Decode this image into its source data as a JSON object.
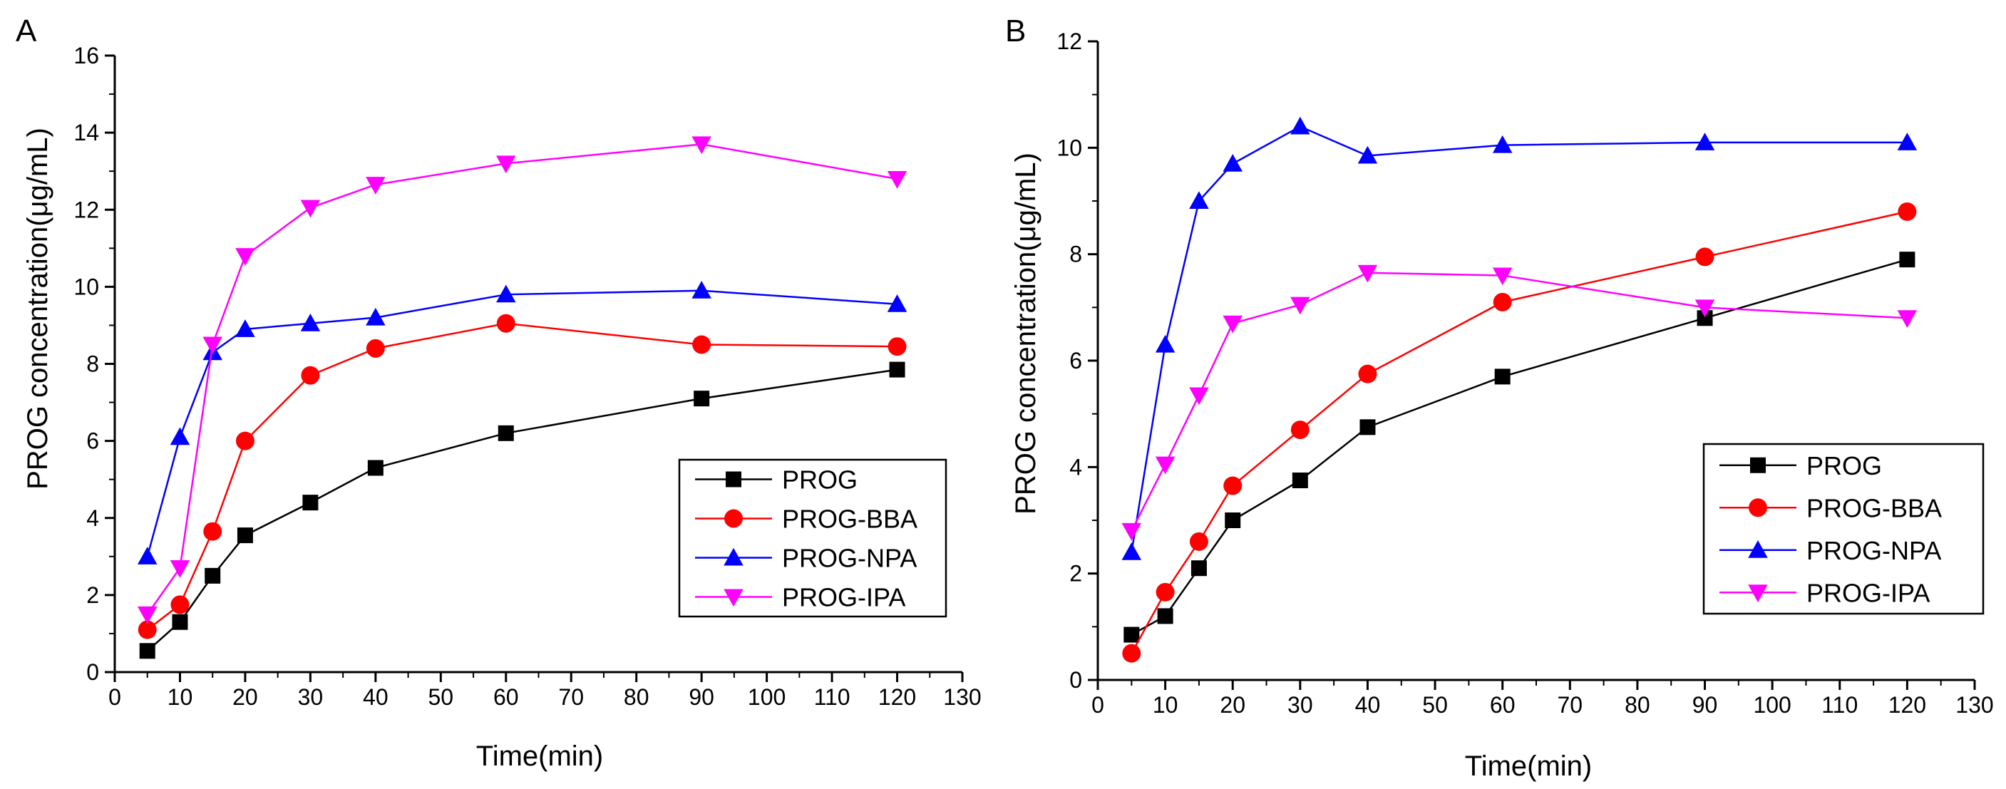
{
  "chart_data": [
    {
      "panel_label": "A",
      "type": "line",
      "title": "",
      "xlabel": "Time(min)",
      "ylabel": "PROG concentration(μg/mL)",
      "xlim": [
        0,
        130
      ],
      "ylim": [
        0,
        16
      ],
      "xticks": [
        0,
        10,
        20,
        30,
        40,
        50,
        60,
        70,
        80,
        90,
        100,
        110,
        120,
        130
      ],
      "yticks": [
        0,
        2,
        4,
        6,
        8,
        10,
        12,
        14,
        16
      ],
      "grid": false,
      "legend_position": "bottom-right",
      "x": [
        5,
        10,
        15,
        20,
        30,
        40,
        60,
        90,
        120
      ],
      "series": [
        {
          "name": "PROG",
          "color": "#000000",
          "marker": "square",
          "values": [
            0.55,
            1.3,
            2.5,
            3.55,
            4.4,
            5.3,
            6.2,
            7.1,
            7.85
          ]
        },
        {
          "name": "PROG-BBA",
          "color": "#ff0000",
          "marker": "circle",
          "values": [
            1.1,
            1.75,
            3.65,
            6.0,
            7.7,
            8.4,
            9.05,
            8.5,
            8.45
          ]
        },
        {
          "name": "PROG-NPA",
          "color": "#0000ff",
          "marker": "triangle-up",
          "values": [
            3.0,
            6.1,
            8.3,
            8.9,
            9.05,
            9.2,
            9.8,
            9.9,
            9.55
          ]
        },
        {
          "name": "PROG-IPA",
          "color": "#ff00ff",
          "marker": "triangle-down",
          "values": [
            1.5,
            2.7,
            8.5,
            10.8,
            12.05,
            12.65,
            13.2,
            13.7,
            12.8
          ]
        }
      ]
    },
    {
      "panel_label": "B",
      "type": "line",
      "title": "",
      "xlabel": "Time(min)",
      "ylabel": "PROG concentration(μg/mL)",
      "xlim": [
        0,
        130
      ],
      "ylim": [
        0,
        12
      ],
      "xticks": [
        0,
        10,
        20,
        30,
        40,
        50,
        60,
        70,
        80,
        90,
        100,
        110,
        120,
        130
      ],
      "yticks": [
        0,
        2,
        4,
        6,
        8,
        10,
        12
      ],
      "grid": false,
      "legend_position": "middle-right",
      "x": [
        5,
        10,
        15,
        20,
        30,
        40,
        60,
        90,
        120
      ],
      "series": [
        {
          "name": "PROG",
          "color": "#000000",
          "marker": "square",
          "values": [
            0.85,
            1.2,
            2.1,
            3.0,
            3.75,
            4.75,
            5.7,
            6.8,
            7.9
          ]
        },
        {
          "name": "PROG-BBA",
          "color": "#ff0000",
          "marker": "circle",
          "values": [
            0.5,
            1.65,
            2.6,
            3.65,
            4.7,
            5.75,
            7.1,
            7.95,
            8.8
          ]
        },
        {
          "name": "PROG-NPA",
          "color": "#0000ff",
          "marker": "triangle-up",
          "values": [
            2.4,
            6.3,
            9.0,
            9.7,
            10.4,
            9.85,
            10.05,
            10.1,
            10.1
          ]
        },
        {
          "name": "PROG-IPA",
          "color": "#ff00ff",
          "marker": "triangle-down",
          "values": [
            2.8,
            4.05,
            5.35,
            6.7,
            7.05,
            7.65,
            7.6,
            7.0,
            6.8
          ]
        }
      ]
    }
  ]
}
